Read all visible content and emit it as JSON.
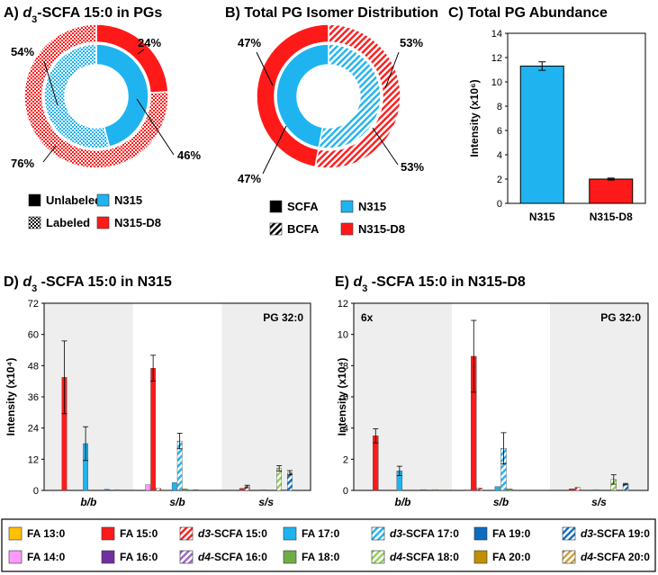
{
  "colors": {
    "red": "#ff1a1a",
    "cyan": "#1fb4f0",
    "black": "#000000",
    "fa13": "#ffc000",
    "fa14": "#ff99ff",
    "fa16": "#7030a0",
    "fa18": "#70ad47",
    "fa19": "#0b6dbf",
    "fa20": "#c09000",
    "d4_16": "#9966cc",
    "d4_18": "#92d050",
    "d4_20": "#c8a040",
    "grey_band": "#eeeeee"
  },
  "panelA": {
    "letter": "A)",
    "title_italic": "d",
    "title_sub": "3",
    "title_rest": "-SCFA 15:0 in PGs",
    "outer": [
      {
        "label": "24%",
        "value": 24,
        "color": "#ff1a1a",
        "pattern": "solid"
      },
      {
        "label": "76%",
        "value": 76,
        "color": "#ff1a1a",
        "pattern": "checker"
      }
    ],
    "inner": [
      {
        "label": "46%",
        "value": 46,
        "color": "#1fb4f0",
        "pattern": "solid"
      },
      {
        "label": "54%",
        "value": 54,
        "color": "#1fb4f0",
        "pattern": "checker"
      }
    ],
    "legend": [
      {
        "label": "Unlabeled",
        "pattern": "solid-black"
      },
      {
        "label": "N315",
        "pattern": "solid-cyan"
      },
      {
        "label": "Labeled",
        "pattern": "checker-black"
      },
      {
        "label": "N315-D8",
        "pattern": "solid-red"
      }
    ]
  },
  "panelB": {
    "letter": "B)",
    "title": "Total PG Isomer Distribution",
    "outer": [
      {
        "label": "53%",
        "value": 53,
        "color": "#ff1a1a",
        "pattern": "hatch"
      },
      {
        "label": "47%",
        "value": 47,
        "color": "#ff1a1a",
        "pattern": "solid"
      }
    ],
    "inner": [
      {
        "label": "53%",
        "value": 53,
        "color": "#1fb4f0",
        "pattern": "hatch"
      },
      {
        "label": "47%",
        "value": 47,
        "color": "#1fb4f0",
        "pattern": "solid"
      }
    ],
    "legend": [
      {
        "label": "SCFA",
        "pattern": "solid-black"
      },
      {
        "label": "N315",
        "pattern": "solid-cyan"
      },
      {
        "label": "BCFA",
        "pattern": "hatch-black"
      },
      {
        "label": "N315-D8",
        "pattern": "solid-red"
      }
    ]
  },
  "chart_data": [
    {
      "type": "bar",
      "panel": "C",
      "title": "C) Total PG Abundance",
      "categories": [
        "N315",
        "N315-D8"
      ],
      "values": [
        11.3,
        2.0
      ],
      "errors": [
        0.35,
        0.08
      ],
      "colors": [
        "#1fb4f0",
        "#ff1a1a"
      ],
      "ylabel": "Intensity (x10⁶)",
      "ylim": [
        0,
        14
      ],
      "yticks": [
        "0",
        "2",
        "4",
        "6",
        "8",
        "10",
        "12",
        "14"
      ]
    },
    {
      "type": "bar",
      "panel": "D",
      "title": "D) d3-SCFA 15:0 in N315",
      "ylabel": "Intensity (x10⁴)",
      "ylim": [
        0,
        72
      ],
      "yticks": [
        "0",
        "12",
        "24",
        "36",
        "48",
        "60",
        "72"
      ],
      "groups": [
        "b/b",
        "s/b",
        "s/s"
      ],
      "annotation": "PG 32:0",
      "series_order": [
        "FA 13:0",
        "FA 14:0",
        "FA 15:0",
        "d3-SCFA 15:0",
        "FA 16:0",
        "d4-SCFA 16:0",
        "FA 17:0",
        "d3-SCFA 17:0",
        "FA 18:0",
        "d4-SCFA 18:0",
        "FA 19:0",
        "d3-SCFA 19:0",
        "FA 20:0",
        "d4-SCFA 20:0"
      ],
      "bars": [
        [
          {
            "s": "FA 15:0",
            "v": 43.5,
            "e": 14
          },
          {
            "s": "FA 17:0",
            "v": 18,
            "e": 6.5
          },
          {
            "s": "FA 19:0",
            "v": 0.4,
            "e": 0
          },
          {
            "s": "FA 20:0",
            "v": 0.3,
            "e": 0
          }
        ],
        [
          {
            "s": "FA 14:0",
            "v": 2.2,
            "e": 0
          },
          {
            "s": "FA 15:0",
            "v": 47,
            "e": 5
          },
          {
            "s": "FA 17:0",
            "v": 3,
            "e": 0
          },
          {
            "s": "FA 18:0",
            "v": 0.6,
            "e": 0
          },
          {
            "s": "FA 19:0",
            "v": 0.3,
            "e": 0
          },
          {
            "s": "d3-SCFA 15:0",
            "v": 0.8,
            "e": 0
          },
          {
            "s": "d3-SCFA 17:0",
            "v": 19,
            "e": 3
          }
        ],
        [
          {
            "s": "FA 15:0",
            "v": 0.8,
            "e": 0
          },
          {
            "s": "d3-SCFA 15:0",
            "v": 1.5,
            "e": 0.5
          },
          {
            "s": "FA 17:0",
            "v": 0.3,
            "e": 0
          },
          {
            "s": "FA 19:0",
            "v": 0.2,
            "e": 0
          },
          {
            "s": "d4-SCFA 18:0",
            "v": 8.5,
            "e": 1
          },
          {
            "s": "d3-SCFA 19:0",
            "v": 6.8,
            "e": 0.8
          }
        ]
      ]
    },
    {
      "type": "bar",
      "panel": "E",
      "title": "E) d3-SCFA 15:0 in N315-D8",
      "ylabel": "Intensity (x10⁴)",
      "ylim": [
        0,
        12
      ],
      "yticks": [
        "0",
        "2",
        "4",
        "6",
        "8",
        "10",
        "12"
      ],
      "groups": [
        "b/b",
        "s/b",
        "s/s"
      ],
      "annotation": "PG 32:0",
      "annotation2": "6x",
      "bars": [
        [
          {
            "s": "FA 15:0",
            "v": 3.5,
            "e": 0.45
          },
          {
            "s": "FA 17:0",
            "v": 1.25,
            "e": 0.3
          },
          {
            "s": "FA 19:0",
            "v": 0.05,
            "e": 0
          },
          {
            "s": "FA 20:0",
            "v": 0.05,
            "e": 0
          }
        ],
        [
          {
            "s": "FA 14:0",
            "v": 0.05,
            "e": 0
          },
          {
            "s": "FA 15:0",
            "v": 8.6,
            "e": 2.3
          },
          {
            "s": "FA 17:0",
            "v": 0.25,
            "e": 0
          },
          {
            "s": "FA 18:0",
            "v": 0.1,
            "e": 0
          },
          {
            "s": "d3-SCFA 15:0",
            "v": 0.15,
            "e": 0
          },
          {
            "s": "d3-SCFA 17:0",
            "v": 2.7,
            "e": 1
          }
        ],
        [
          {
            "s": "FA 15:0",
            "v": 0.1,
            "e": 0
          },
          {
            "s": "d3-SCFA 15:0",
            "v": 0.2,
            "e": 0
          },
          {
            "s": "FA 17:0",
            "v": 0.05,
            "e": 0
          },
          {
            "s": "d4-SCFA 18:0",
            "v": 0.7,
            "e": 0.3
          },
          {
            "s": "d3-SCFA 19:0",
            "v": 0.4,
            "e": 0.05
          }
        ]
      ]
    }
  ],
  "legend_bottom": [
    [
      {
        "label": "FA 13:0",
        "color": "#ffc000",
        "pattern": "solid"
      },
      {
        "label": "FA 15:0",
        "color": "#ff1a1a",
        "pattern": "solid"
      },
      {
        "label": "d3-SCFA 15:0",
        "italic": "d3",
        "rest": "-SCFA 15:0",
        "color": "#ff1a1a",
        "pattern": "hatch"
      },
      {
        "label": "FA 17:0",
        "color": "#1fb4f0",
        "pattern": "solid"
      },
      {
        "label": "d3-SCFA 17:0",
        "italic": "d3",
        "rest": "-SCFA 17:0",
        "color": "#1fb4f0",
        "pattern": "hatch"
      },
      {
        "label": "FA 19:0",
        "color": "#0b6dbf",
        "pattern": "solid"
      },
      {
        "label": "d3-SCFA 19:0",
        "italic": "d3",
        "rest": "-SCFA 19:0",
        "color": "#0b6dbf",
        "pattern": "hatch"
      }
    ],
    [
      {
        "label": "FA 14:0",
        "color": "#ff99ff",
        "pattern": "solid"
      },
      {
        "label": "FA 16:0",
        "color": "#7030a0",
        "pattern": "solid"
      },
      {
        "label": "d4-SCFA 16:0",
        "italic": "d4",
        "rest": "-SCFA 16:0",
        "color": "#9966cc",
        "pattern": "hatch"
      },
      {
        "label": "FA 18:0",
        "color": "#70ad47",
        "pattern": "solid"
      },
      {
        "label": "d4-SCFA 18:0",
        "italic": "d4",
        "rest": "-SCFA 18:0",
        "color": "#92d050",
        "pattern": "hatch"
      },
      {
        "label": "FA 20:0",
        "color": "#c09000",
        "pattern": "solid"
      },
      {
        "label": "d4-SCFA 20:0",
        "italic": "d4",
        "rest": "-SCFA 20:0",
        "color": "#c8a040",
        "pattern": "hatch"
      }
    ]
  ]
}
